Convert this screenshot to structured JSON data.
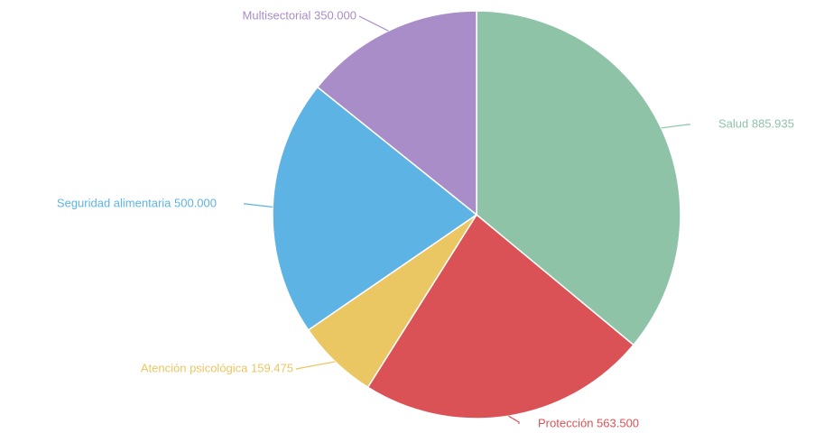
{
  "chart_data": {
    "type": "pie",
    "title": "",
    "slices": [
      {
        "label": "Salud 885.935",
        "category": "Salud",
        "value": 885935,
        "color": "#8fc3a8"
      },
      {
        "label": "Protección 563.500",
        "category": "Protección",
        "value": 563500,
        "color": "#db5256"
      },
      {
        "label": "Atención psicológica 159.475",
        "category": "Atención psicológica",
        "value": 159475,
        "color": "#eac762"
      },
      {
        "label": "Seguridad alimentaria 500.000",
        "category": "Seguridad alimentaria",
        "value": 500000,
        "color": "#5db4e4"
      },
      {
        "label": "Multisectorial 350.000",
        "category": "Multisectorial",
        "value": 350000,
        "color": "#a98dc8"
      }
    ],
    "legend": "none",
    "start_angle": "12 o'clock",
    "direction": "clockwise"
  }
}
